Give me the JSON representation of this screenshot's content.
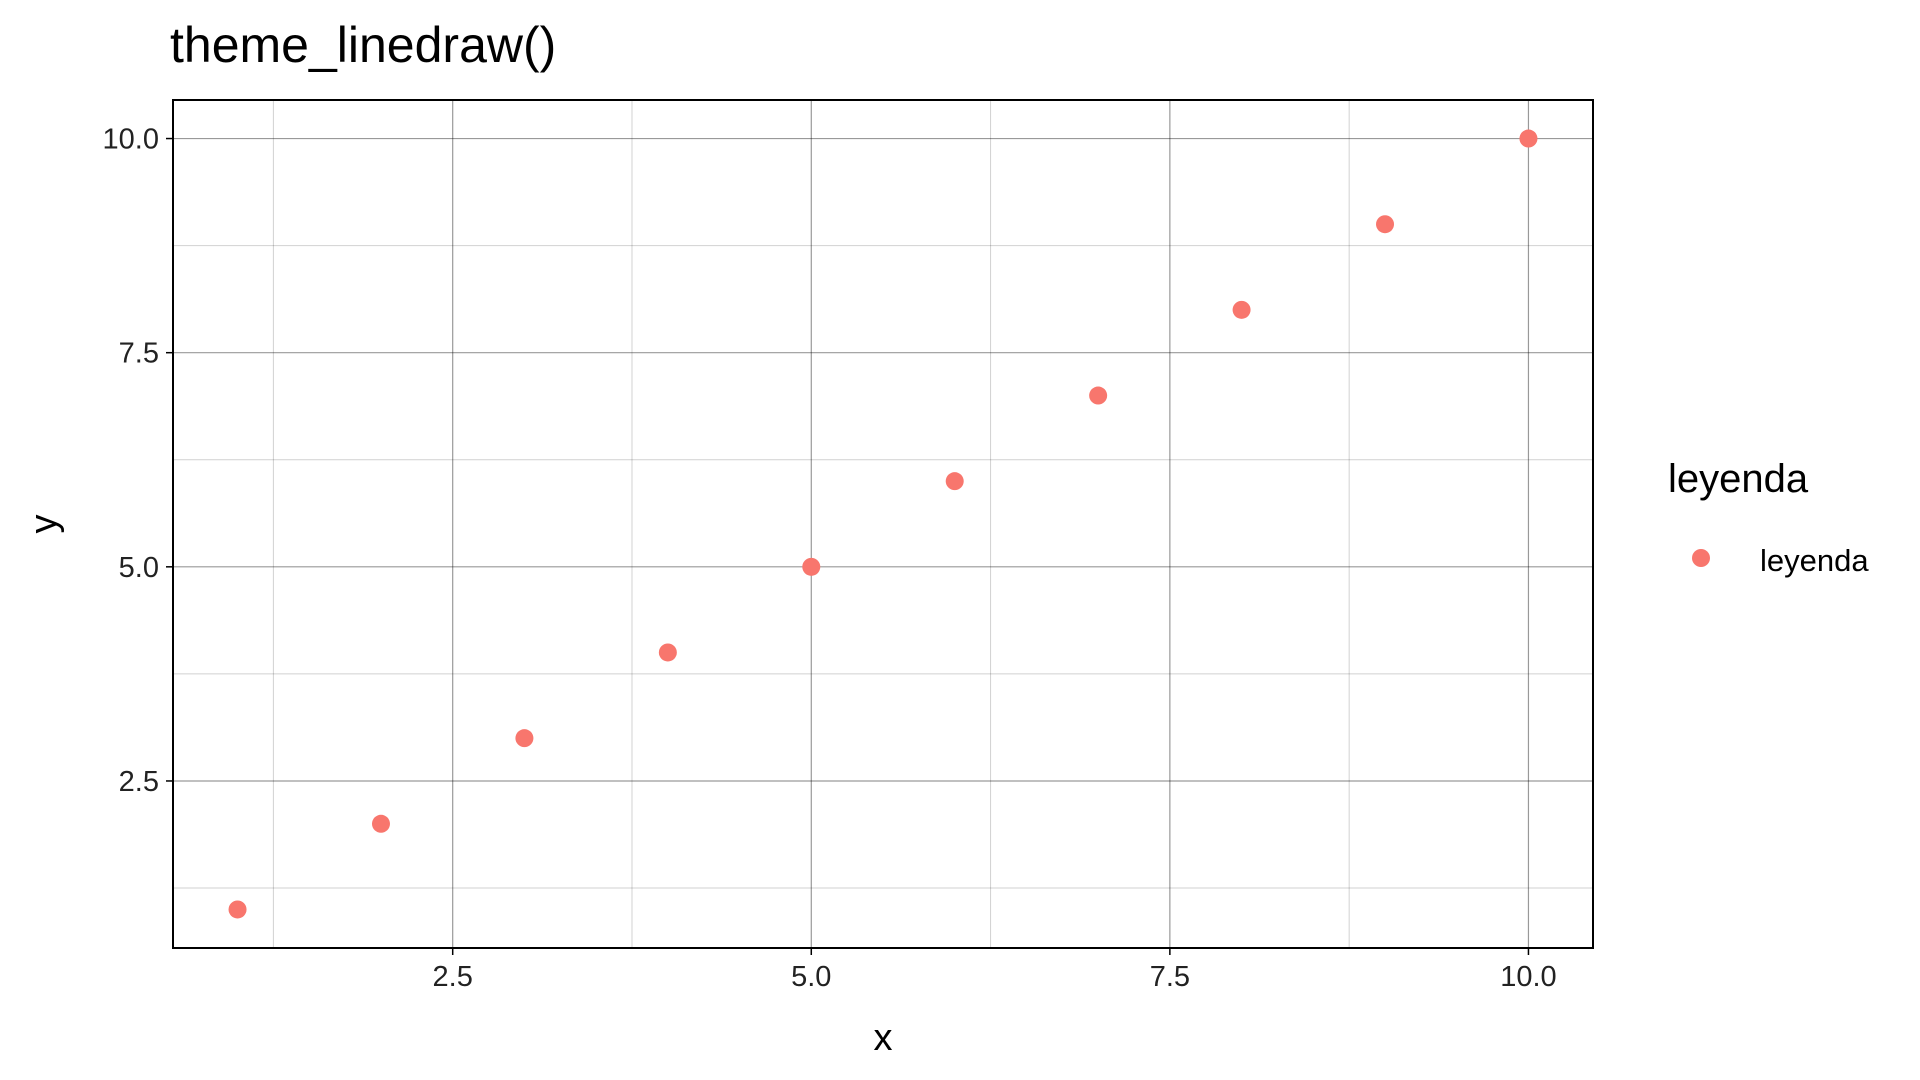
{
  "chart_data": {
    "type": "scatter",
    "title": "theme_linedraw()",
    "xlabel": "x",
    "ylabel": "y",
    "xlim": [
      0.55,
      10.45
    ],
    "ylim": [
      0.55,
      10.45
    ],
    "x_ticks": [
      2.5,
      5.0,
      7.5,
      10.0
    ],
    "x_tick_labels": [
      "2.5",
      "5.0",
      "7.5",
      "10.0"
    ],
    "y_ticks": [
      2.5,
      5.0,
      7.5,
      10.0
    ],
    "y_tick_labels": [
      "2.5",
      "5.0",
      "7.5",
      "10.0"
    ],
    "grid": true,
    "legend_position": "right",
    "legend_title": "leyenda",
    "series": [
      {
        "name": "leyenda",
        "color": "#F8766D",
        "points": [
          {
            "x": 1,
            "y": 1
          },
          {
            "x": 2,
            "y": 2
          },
          {
            "x": 3,
            "y": 3
          },
          {
            "x": 4,
            "y": 4
          },
          {
            "x": 5,
            "y": 5
          },
          {
            "x": 6,
            "y": 6
          },
          {
            "x": 7,
            "y": 7
          },
          {
            "x": 8,
            "y": 8
          },
          {
            "x": 9,
            "y": 9
          },
          {
            "x": 10,
            "y": 10
          }
        ]
      }
    ]
  }
}
